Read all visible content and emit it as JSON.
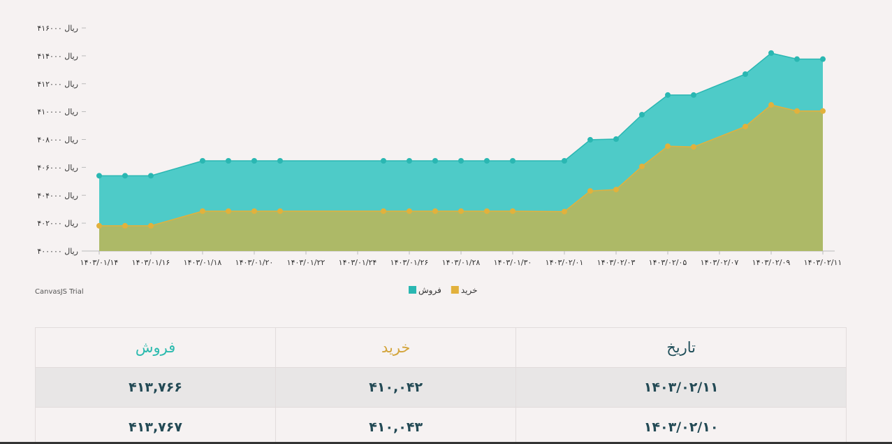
{
  "chart_data": {
    "type": "area",
    "x": [
      "1403/01/14",
      "1403/01/15",
      "1403/01/16",
      "1403/01/18",
      "1403/01/19",
      "1403/01/20",
      "1403/01/21",
      "1403/01/25",
      "1403/01/26",
      "1403/01/27",
      "1403/01/28",
      "1403/01/29",
      "1403/01/30",
      "1403/02/01",
      "1403/02/02",
      "1403/02/03",
      "1403/02/04",
      "1403/02/05",
      "1403/02/06",
      "1403/02/08",
      "1403/02/09",
      "1403/02/10",
      "1403/02/11"
    ],
    "series": [
      {
        "name": "فروش",
        "color": "#4ecbc8",
        "marker_color": "#2ab7b2",
        "values": [
          405400,
          405400,
          405400,
          406470,
          406470,
          406470,
          406470,
          406470,
          406470,
          406470,
          406470,
          406470,
          406470,
          406470,
          407980,
          408030,
          409780,
          411190,
          411190,
          412690,
          414200,
          413767,
          413766
        ]
      },
      {
        "name": "خرید",
        "color": "#adb967",
        "marker_color": "#e2b13c",
        "values": [
          401810,
          401810,
          401810,
          402860,
          402860,
          402860,
          402860,
          402860,
          402860,
          402860,
          402860,
          402860,
          402860,
          402830,
          404310,
          404410,
          406070,
          407520,
          407470,
          408930,
          410480,
          410043,
          410042
        ]
      }
    ],
    "ylim": [
      400000,
      416000
    ],
    "yticks": [
      {
        "value": 400000,
        "label": "ریال ۴۰۰۰۰۰"
      },
      {
        "value": 402000,
        "label": "ریال ۴۰۲۰۰۰"
      },
      {
        "value": 404000,
        "label": "ریال ۴۰۴۰۰۰"
      },
      {
        "value": 406000,
        "label": "ریال ۴۰۶۰۰۰"
      },
      {
        "value": 408000,
        "label": "ریال ۴۰۸۰۰۰"
      },
      {
        "value": 410000,
        "label": "ریال ۴۱۰۰۰۰"
      },
      {
        "value": 412000,
        "label": "ریال ۴۱۲۰۰۰"
      },
      {
        "value": 414000,
        "label": "ریال ۴۱۴۰۰۰"
      },
      {
        "value": 416000,
        "label": "ریال ۴۱۶۰۰۰"
      }
    ],
    "xticks": [
      {
        "value": "1403/01/14",
        "label": "۱۴۰۳/۰۱/۱۴"
      },
      {
        "value": "1403/01/16",
        "label": "۱۴۰۳/۰۱/۱۶"
      },
      {
        "value": "1403/01/18",
        "label": "۱۴۰۳/۰۱/۱۸"
      },
      {
        "value": "1403/01/20",
        "label": "۱۴۰۳/۰۱/۲۰"
      },
      {
        "value": "1403/01/22",
        "label": "۱۴۰۳/۰۱/۲۲"
      },
      {
        "value": "1403/01/24",
        "label": "۱۴۰۳/۰۱/۲۴"
      },
      {
        "value": "1403/01/26",
        "label": "۱۴۰۳/۰۱/۲۶"
      },
      {
        "value": "1403/01/28",
        "label": "۱۴۰۳/۰۱/۲۸"
      },
      {
        "value": "1403/01/30",
        "label": "۱۴۰۳/۰۱/۳۰"
      },
      {
        "value": "1403/02/01",
        "label": "۱۴۰۳/۰۲/۰۱"
      },
      {
        "value": "1403/02/03",
        "label": "۱۴۰۳/۰۲/۰۳"
      },
      {
        "value": "1403/02/05",
        "label": "۱۴۰۳/۰۲/۰۵"
      },
      {
        "value": "1403/02/07",
        "label": "۱۴۰۳/۰۲/۰۷"
      },
      {
        "value": "1403/02/09",
        "label": "۱۴۰۳/۰۲/۰۹"
      },
      {
        "value": "1403/02/11",
        "label": "۱۴۰۳/۰۲/۱۱"
      }
    ],
    "grid": false,
    "credit": "CanvasJS Trial"
  },
  "table": {
    "header": [
      "تاریخ",
      "خرید",
      "فروش"
    ],
    "header_colors": [
      "#1f4e59",
      "#d3a43a",
      "#2bbaae"
    ],
    "rows": [
      [
        "۱۴۰۳/۰۲/۱۱",
        "۴۱۰,۰۴۲",
        "۴۱۳,۷۶۶"
      ],
      [
        "۱۴۰۳/۰۲/۱۰",
        "۴۱۰,۰۴۳",
        "۴۱۳,۷۶۷"
      ]
    ]
  }
}
